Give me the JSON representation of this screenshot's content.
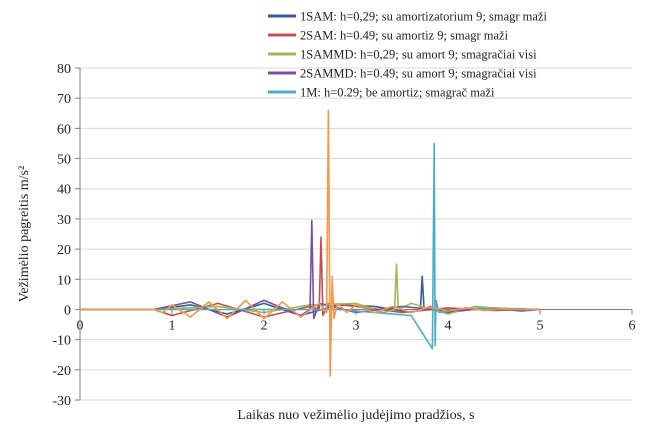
{
  "chart_data": {
    "type": "line",
    "title": "",
    "xlabel": "Laikas nuo vežimėlio judėjimo pradžios, s",
    "ylabel": "Vežimėlio pagreitis m/s²",
    "xlim": [
      0,
      6
    ],
    "ylim": [
      -30,
      80
    ],
    "x_ticks": [
      0,
      1,
      2,
      3,
      4,
      5,
      6
    ],
    "y_ticks": [
      -30,
      -20,
      -10,
      0,
      10,
      20,
      30,
      40,
      50,
      60,
      70,
      80
    ],
    "x_tick_labels": [
      "0",
      "1",
      "2",
      "3",
      "4",
      "5",
      "6"
    ],
    "y_tick_labels": [
      "-30",
      "-20",
      "-10",
      "0",
      "10",
      "20",
      "30",
      "40",
      "50",
      "60",
      "70",
      "80"
    ],
    "grid": "horizontal",
    "legend_position": "top-right",
    "series": [
      {
        "name": "1SAM: h=0,29; su amortizatorium 9; smagr maži",
        "color": "#3a5a9c",
        "x": [
          0,
          0.8,
          1.2,
          1.6,
          2.0,
          2.4,
          2.8,
          3.2,
          3.6,
          3.7,
          3.72,
          3.74,
          3.8,
          4.0,
          4.4,
          4.8,
          5.0
        ],
        "y": [
          0,
          0,
          1.5,
          -1.5,
          2,
          -2,
          1.5,
          1,
          -1,
          0,
          11,
          0,
          1,
          -1,
          0.5,
          -0.5,
          0
        ]
      },
      {
        "name": "2SAM: h=0.49; su amortiz 9; smagr maži",
        "color": "#c0504d",
        "x": [
          0,
          0.8,
          1.0,
          1.5,
          2.0,
          2.5,
          2.6,
          2.62,
          2.64,
          2.7,
          3.0,
          3.5,
          4.0,
          4.5,
          5.0
        ],
        "y": [
          0,
          0,
          -2,
          2,
          -2.5,
          1,
          0,
          24,
          -2,
          2,
          1,
          -1,
          0.5,
          -0.3,
          0
        ]
      },
      {
        "name": "1SAMMD: h=0,29; su amort 9; smagračiai visi",
        "color": "#9bbb59",
        "x": [
          0,
          0.8,
          1.5,
          2.0,
          2.5,
          3.0,
          3.3,
          3.42,
          3.44,
          3.46,
          3.6,
          4.0,
          4.3,
          4.5,
          5.0
        ],
        "y": [
          0,
          0,
          1,
          -1,
          1.5,
          2,
          -1,
          0,
          15,
          0,
          2,
          -1.5,
          1,
          0.5,
          0
        ]
      },
      {
        "name": "2SAMMD: h=0.49; su amort 9; smagračiai visi",
        "color": "#7b4fa0",
        "x": [
          0,
          0.8,
          1.2,
          1.6,
          2.0,
          2.4,
          2.5,
          2.52,
          2.54,
          2.6,
          3.0,
          3.5,
          4.0,
          4.5,
          5.0
        ],
        "y": [
          0,
          0,
          2.5,
          -2.5,
          3,
          -2,
          0,
          29.5,
          -3,
          2,
          -1,
          1,
          -0.5,
          0.3,
          0
        ]
      },
      {
        "name": "1M: h=0.29; be amortiz; smagrač maži",
        "color": "#4bacc6",
        "x": [
          0,
          0.8,
          2.8,
          3.2,
          3.6,
          3.83,
          3.85,
          3.86,
          3.87,
          3.9,
          4.2,
          4.6,
          5.0
        ],
        "y": [
          0,
          0,
          0,
          -1,
          -2,
          -13,
          55,
          -12,
          3,
          -1,
          0.5,
          0,
          0
        ]
      },
      {
        "name": "",
        "color": "#f79646",
        "x": [
          0,
          0.8,
          0.9,
          1.0,
          1.2,
          1.4,
          1.6,
          1.8,
          2.0,
          2.2,
          2.4,
          2.6,
          2.68,
          2.7,
          2.72,
          2.74,
          2.76,
          2.8,
          2.9,
          3.0,
          3.2,
          3.4,
          3.6,
          3.8,
          4.0,
          4.2,
          4.4,
          4.6,
          4.8,
          5.0
        ],
        "y": [
          0,
          0,
          -1,
          1.5,
          -2.5,
          2.5,
          -3,
          3,
          -3,
          2.5,
          -2.5,
          2,
          -1,
          66,
          -22,
          11,
          -3,
          2,
          -1,
          1.5,
          -1,
          1,
          -1,
          0.8,
          -0.5,
          0.5,
          -0.3,
          0.3,
          0,
          0
        ]
      }
    ]
  }
}
